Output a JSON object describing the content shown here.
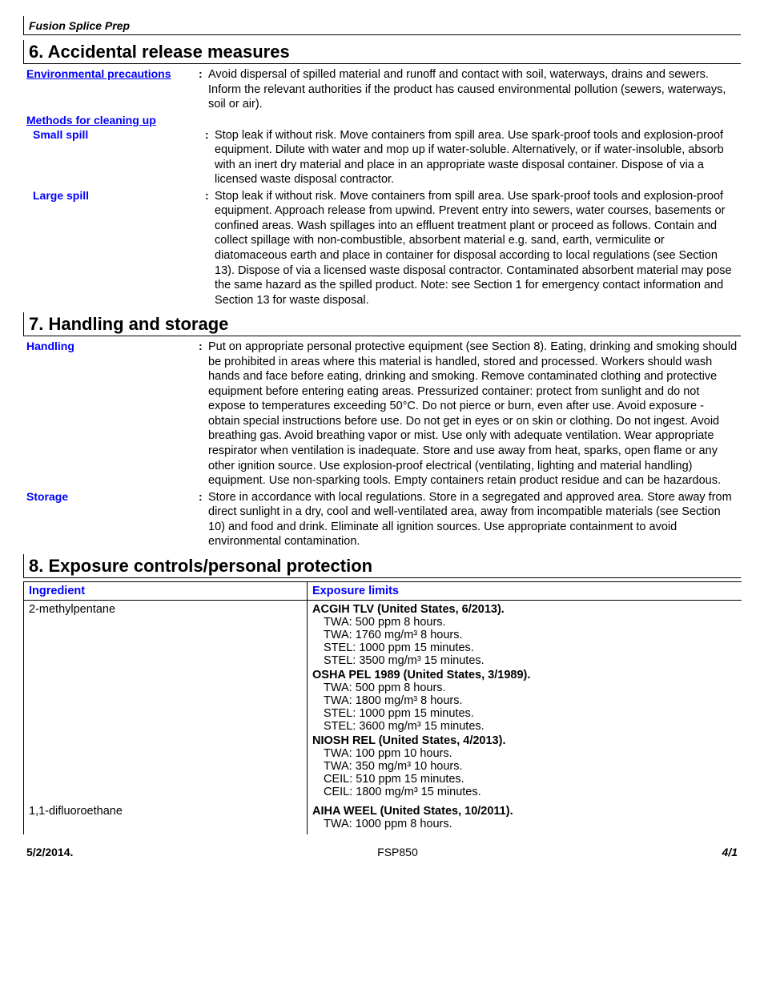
{
  "header": {
    "product": "Fusion Splice Prep"
  },
  "section6": {
    "title": "6. Accidental release measures",
    "envPrecautions": {
      "label": "Environmental precautions",
      "text": "Avoid dispersal of spilled material and runoff and contact with soil, waterways, drains and sewers.  Inform the relevant authorities if the product has caused environmental pollution (sewers, waterways, soil or air)."
    },
    "methodsLabel": "Methods for cleaning up",
    "smallSpill": {
      "label": "Small spill",
      "text": "Stop leak if without risk.  Move containers from spill area.  Use spark-proof tools and explosion-proof equipment.  Dilute with water and mop up if water-soluble.  Alternatively, or if water-insoluble, absorb with an inert dry material and place in an appropriate waste disposal container.  Dispose of via a licensed waste disposal contractor."
    },
    "largeSpill": {
      "label": "Large spill",
      "text": "Stop leak if without risk.  Move containers from spill area.  Use spark-proof tools and explosion-proof equipment.  Approach release from upwind.  Prevent entry into sewers, water courses, basements or confined areas.  Wash spillages into an effluent treatment plant or proceed as follows.  Contain and collect spillage with non-combustible, absorbent material e.g. sand, earth, vermiculite or diatomaceous earth and place in container for disposal according to local regulations (see Section 13).  Dispose of via a licensed waste disposal contractor.  Contaminated absorbent material may pose the same hazard as the spilled product.  Note: see Section 1 for emergency contact information and Section 13 for waste disposal."
    }
  },
  "section7": {
    "title": "7. Handling and storage",
    "handling": {
      "label": "Handling",
      "text": "Put on appropriate personal protective equipment (see Section 8).  Eating, drinking and smoking should be prohibited in areas where this material is handled, stored and processed.  Workers should wash hands and face before eating, drinking and smoking.  Remove contaminated clothing and protective equipment before entering eating areas.  Pressurized container: protect from sunlight and do not expose to temperatures exceeding 50°C.  Do not pierce or burn, even after use.  Avoid exposure - obtain special instructions before use.  Do not get in eyes or on skin or clothing.  Do not ingest. Avoid breathing gas.  Avoid breathing vapor or mist.  Use only with adequate ventilation.  Wear appropriate respirator when ventilation is inadequate.  Store and use away from heat, sparks, open flame or any other ignition source.  Use explosion-proof electrical (ventilating, lighting and material handling) equipment.  Use non-sparking tools.  Empty containers retain product residue and can be hazardous."
    },
    "storage": {
      "label": "Storage",
      "text": "Store in accordance with local regulations.  Store in a segregated and approved area.  Store away from direct sunlight in a dry, cool and well-ventilated area, away from incompatible materials (see Section 10) and food and drink.  Eliminate all ignition sources.  Use appropriate containment to avoid environmental contamination."
    }
  },
  "section8": {
    "title": "8. Exposure controls/personal protection",
    "cols": {
      "ingredient": "Ingredient",
      "limits": "Exposure limits"
    },
    "rows": [
      {
        "ingredient": "2-methylpentane",
        "blocks": [
          {
            "title": "ACGIH TLV (United States, 6/2013).",
            "lines": [
              "TWA: 500 ppm 8 hours.",
              "TWA: 1760 mg/m³ 8 hours.",
              "STEL: 1000 ppm 15 minutes.",
              "STEL: 3500 mg/m³ 15 minutes."
            ]
          },
          {
            "title": "OSHA PEL 1989 (United States, 3/1989).",
            "lines": [
              "TWA: 500 ppm 8 hours.",
              "TWA: 1800 mg/m³ 8 hours.",
              "STEL: 1000 ppm 15 minutes.",
              "STEL: 3600 mg/m³ 15 minutes."
            ]
          },
          {
            "title": "NIOSH REL (United States, 4/2013).",
            "lines": [
              "TWA: 100 ppm 10 hours.",
              "TWA: 350 mg/m³ 10 hours.",
              "CEIL: 510 ppm 15 minutes.",
              "CEIL: 1800 mg/m³ 15 minutes."
            ]
          }
        ]
      },
      {
        "ingredient": "1,1-difluoroethane",
        "blocks": [
          {
            "title": "AIHA WEEL (United States, 10/2011).",
            "lines": [
              "TWA: 1000 ppm 8 hours."
            ]
          }
        ]
      }
    ]
  },
  "footer": {
    "date": "5/2/2014.",
    "code": "FSP850",
    "page": "4/1"
  }
}
